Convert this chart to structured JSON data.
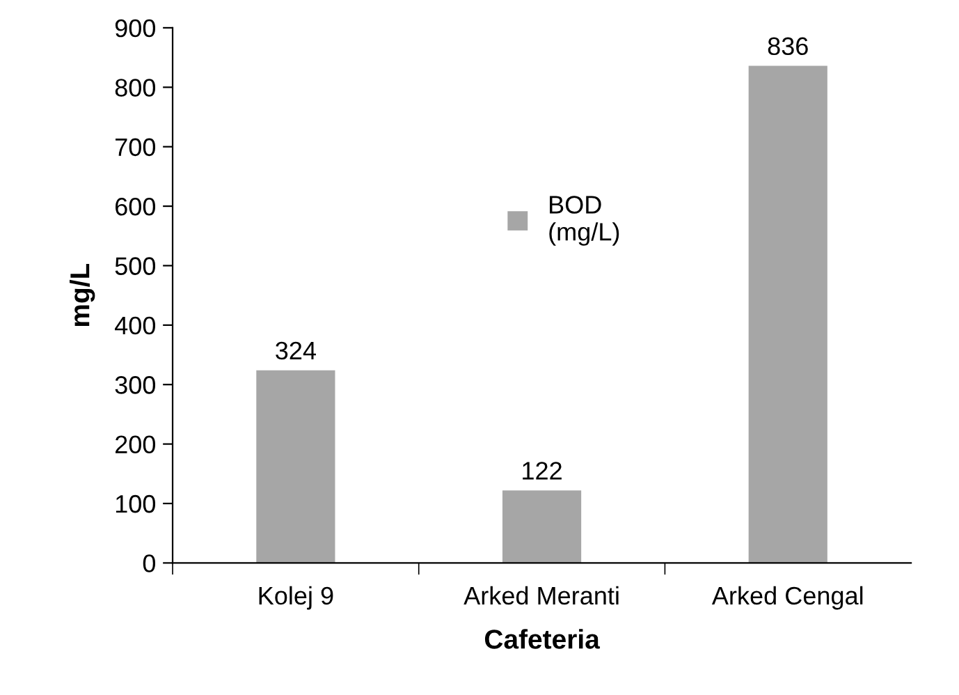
{
  "chart_data": {
    "type": "bar",
    "xlabel": "Cafeteria",
    "ylabel": "mg/L",
    "categories": [
      "Kolej 9",
      "Arked Meranti",
      "Arked Cengal"
    ],
    "series": [
      {
        "name": "BOD\n(mg/L)",
        "color": "#a6a6a6",
        "values": [
          324,
          122,
          836
        ]
      }
    ],
    "ylim": [
      0,
      900
    ],
    "yticks": [
      0,
      100,
      200,
      300,
      400,
      500,
      600,
      700,
      800,
      900
    ],
    "data_labels": true,
    "grid": false,
    "legend": "center"
  }
}
